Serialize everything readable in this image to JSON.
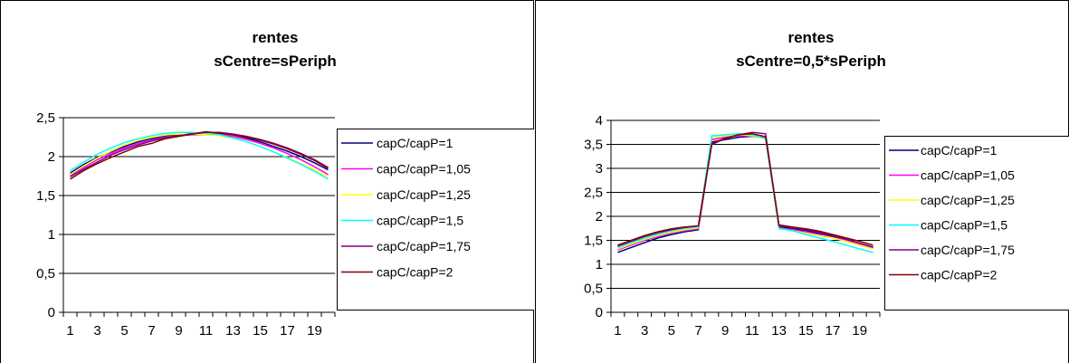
{
  "chart_data": [
    {
      "type": "line",
      "title": "rentes",
      "subtitle": "sCentre=sPeriph",
      "xlabel": "",
      "ylabel": "",
      "x": [
        1,
        2,
        3,
        4,
        5,
        6,
        7,
        8,
        9,
        10,
        11,
        12,
        13,
        14,
        15,
        16,
        17,
        18,
        19,
        20
      ],
      "x_tick_labels": [
        "1",
        "3",
        "5",
        "7",
        "9",
        "11",
        "13",
        "15",
        "17",
        "19"
      ],
      "y_ticks": [
        "0",
        "0,5",
        "1",
        "1,5",
        "2",
        "2,5"
      ],
      "ylim": [
        0,
        2.5
      ],
      "grid": "horizontal",
      "legend_position": "right",
      "series": [
        {
          "name": "capC/capP=1",
          "color": "#000080",
          "values": [
            1.79,
            1.9,
            1.99,
            2.06,
            2.13,
            2.19,
            2.23,
            2.26,
            2.28,
            2.3,
            2.31,
            2.3,
            2.28,
            2.24,
            2.19,
            2.13,
            2.07,
            2.0,
            1.92,
            1.83
          ]
        },
        {
          "name": "capC/capP=1,05",
          "color": "#ff00ff",
          "values": [
            1.76,
            1.86,
            1.96,
            2.04,
            2.11,
            2.17,
            2.21,
            2.25,
            2.27,
            2.28,
            2.28,
            2.28,
            2.26,
            2.22,
            2.17,
            2.11,
            2.04,
            1.96,
            1.87,
            1.77
          ]
        },
        {
          "name": "capC/capP=1,25",
          "color": "#ffff00",
          "values": [
            1.77,
            1.88,
            1.98,
            2.07,
            2.15,
            2.21,
            2.25,
            2.28,
            2.29,
            2.29,
            2.28,
            2.27,
            2.24,
            2.19,
            2.13,
            2.06,
            1.99,
            1.91,
            1.83,
            1.74
          ]
        },
        {
          "name": "capC/capP=1,5",
          "color": "#00ffff",
          "values": [
            1.82,
            1.93,
            2.03,
            2.11,
            2.18,
            2.23,
            2.27,
            2.3,
            2.31,
            2.31,
            2.3,
            2.28,
            2.24,
            2.19,
            2.13,
            2.06,
            1.98,
            1.9,
            1.81,
            1.71
          ]
        },
        {
          "name": "capC/capP=1,75",
          "color": "#800080",
          "values": [
            1.74,
            1.84,
            1.93,
            2.02,
            2.09,
            2.15,
            2.2,
            2.24,
            2.27,
            2.29,
            2.31,
            2.31,
            2.29,
            2.26,
            2.22,
            2.17,
            2.11,
            2.04,
            1.96,
            1.86
          ]
        },
        {
          "name": "capC/capP=2",
          "color": "#800000",
          "values": [
            1.71,
            1.82,
            1.91,
            1.99,
            2.06,
            2.13,
            2.17,
            2.23,
            2.26,
            2.29,
            2.32,
            2.3,
            2.28,
            2.25,
            2.21,
            2.16,
            2.1,
            2.03,
            1.95,
            1.85
          ]
        }
      ]
    },
    {
      "type": "line",
      "title": "rentes",
      "subtitle": "sCentre=0,5*sPeriph",
      "xlabel": "",
      "ylabel": "",
      "x": [
        1,
        2,
        3,
        4,
        5,
        6,
        7,
        8,
        9,
        10,
        11,
        12,
        13,
        14,
        15,
        16,
        17,
        18,
        19,
        20
      ],
      "x_tick_labels": [
        "1",
        "3",
        "5",
        "7",
        "9",
        "11",
        "13",
        "15",
        "17",
        "19"
      ],
      "y_ticks": [
        "0",
        "0,5",
        "1",
        "1,5",
        "2",
        "2,5",
        "3",
        "3,5",
        "4"
      ],
      "ylim": [
        0,
        4
      ],
      "grid": "horizontal",
      "legend_position": "right",
      "series": [
        {
          "name": "capC/capP=1",
          "color": "#000080",
          "values": [
            1.25,
            1.35,
            1.45,
            1.55,
            1.62,
            1.68,
            1.72,
            3.55,
            3.6,
            3.65,
            3.67,
            3.63,
            1.78,
            1.75,
            1.7,
            1.64,
            1.58,
            1.5,
            1.42,
            1.33
          ]
        },
        {
          "name": "capC/capP=1,05",
          "color": "#ff00ff",
          "values": [
            1.3,
            1.4,
            1.5,
            1.58,
            1.65,
            1.7,
            1.74,
            3.6,
            3.65,
            3.68,
            3.68,
            3.64,
            1.76,
            1.72,
            1.68,
            1.62,
            1.56,
            1.5,
            1.42,
            1.35
          ]
        },
        {
          "name": "capC/capP=1,25",
          "color": "#ffff00",
          "values": [
            1.32,
            1.42,
            1.52,
            1.6,
            1.67,
            1.72,
            1.76,
            3.65,
            3.68,
            3.7,
            3.68,
            3.62,
            1.74,
            1.7,
            1.65,
            1.6,
            1.55,
            1.48,
            1.4,
            1.32
          ]
        },
        {
          "name": "capC/capP=1,5",
          "color": "#00ffff",
          "values": [
            1.35,
            1.45,
            1.55,
            1.63,
            1.7,
            1.75,
            1.78,
            3.68,
            3.7,
            3.72,
            3.7,
            3.62,
            1.75,
            1.7,
            1.62,
            1.55,
            1.48,
            1.4,
            1.32,
            1.25
          ]
        },
        {
          "name": "capC/capP=1,75",
          "color": "#800080",
          "values": [
            1.38,
            1.48,
            1.58,
            1.66,
            1.72,
            1.77,
            1.8,
            3.5,
            3.62,
            3.7,
            3.75,
            3.72,
            1.8,
            1.77,
            1.72,
            1.67,
            1.6,
            1.52,
            1.44,
            1.36
          ]
        },
        {
          "name": "capC/capP=2",
          "color": "#800000",
          "values": [
            1.4,
            1.5,
            1.6,
            1.68,
            1.74,
            1.78,
            1.8,
            3.52,
            3.63,
            3.7,
            3.72,
            3.66,
            1.82,
            1.78,
            1.74,
            1.69,
            1.62,
            1.55,
            1.48,
            1.4
          ]
        }
      ]
    }
  ]
}
